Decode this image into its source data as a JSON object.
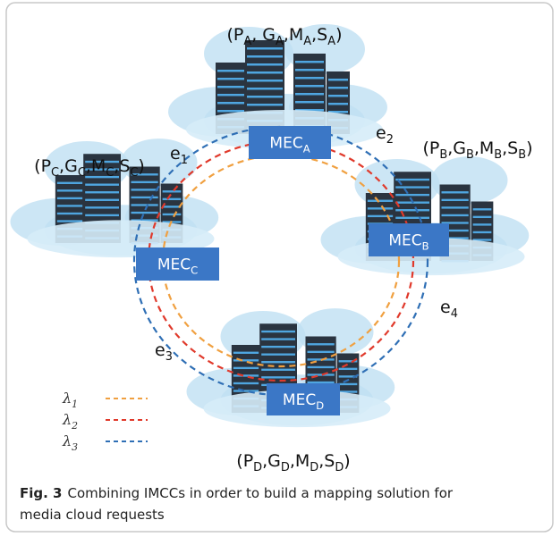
{
  "nodes": [
    {
      "id": "A",
      "box": [
        "MEC",
        "A"
      ],
      "tuple": [
        "(P",
        "A",
        ", G",
        "A",
        ",M",
        "A",
        ",S",
        "A",
        ")"
      ]
    },
    {
      "id": "B",
      "box": [
        "MEC",
        "B"
      ],
      "tuple": [
        "(P",
        "B",
        ",G",
        "B",
        ",M",
        "B",
        ",S",
        "B",
        ")"
      ]
    },
    {
      "id": "C",
      "box": [
        "MEC",
        "C"
      ],
      "tuple": [
        "(P",
        "C",
        ",G",
        "C",
        ",M",
        "C",
        ",S",
        "C",
        ")"
      ]
    },
    {
      "id": "D",
      "box": [
        "MEC",
        "D"
      ],
      "tuple": [
        "(P",
        "D",
        ",G",
        "D",
        ",M",
        "D",
        ",S",
        "D",
        ")"
      ]
    }
  ],
  "edges": [
    [
      "e",
      "1"
    ],
    [
      "e",
      "2"
    ],
    [
      "e",
      "3"
    ],
    [
      "e",
      "4"
    ]
  ],
  "legend": [
    {
      "symbol": [
        "λ",
        "1"
      ],
      "color": "#f0a040"
    },
    {
      "symbol": [
        "λ",
        "2"
      ],
      "color": "#e0392b"
    },
    {
      "symbol": [
        "λ",
        "3"
      ],
      "color": "#2f6fb5"
    }
  ],
  "caption": {
    "label": "Fig. 3",
    "lines": [
      "Combining IMCCs in order to build a mapping solution for",
      "media cloud requests"
    ]
  }
}
